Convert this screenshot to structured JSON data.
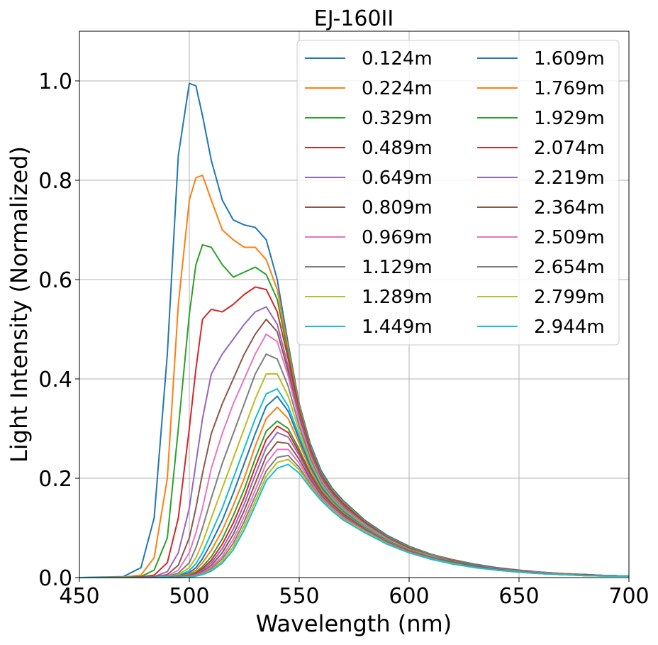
{
  "chart_data": {
    "type": "line",
    "title": "EJ-160II",
    "xlabel": "Wavelength (nm)",
    "ylabel": "Light Intensity (Normalized)",
    "xlim": [
      450,
      700
    ],
    "ylim": [
      0,
      1.1
    ],
    "xticks": [
      450,
      500,
      550,
      600,
      650,
      700
    ],
    "xtick_labels": [
      "450",
      "500",
      "550",
      "600",
      "650",
      "700"
    ],
    "yticks": [
      0.0,
      0.2,
      0.4,
      0.6,
      0.8,
      1.0
    ],
    "ytick_labels": [
      "0.0",
      "0.2",
      "0.4",
      "0.6",
      "0.8",
      "1.0"
    ],
    "grid": true,
    "legend_position": "top-right",
    "legend_columns": 2,
    "x": [
      450,
      470,
      478,
      484,
      490,
      495,
      500,
      503,
      506,
      510,
      515,
      520,
      525,
      530,
      535,
      540,
      545,
      550,
      555,
      560,
      565,
      570,
      580,
      590,
      600,
      610,
      620,
      630,
      640,
      650,
      660,
      670,
      680,
      690,
      700
    ],
    "series": [
      {
        "name": "0.124m",
        "color": "#1f77b4",
        "values": [
          0,
          0.002,
          0.02,
          0.12,
          0.45,
          0.85,
          0.995,
          0.99,
          0.93,
          0.84,
          0.76,
          0.72,
          0.71,
          0.705,
          0.68,
          0.6,
          0.47,
          0.35,
          0.27,
          0.215,
          0.18,
          0.155,
          0.115,
          0.085,
          0.063,
          0.047,
          0.036,
          0.027,
          0.02,
          0.015,
          0.011,
          0.008,
          0.006,
          0.004,
          0.003
        ]
      },
      {
        "name": "0.224m",
        "color": "#ff7f0e",
        "values": [
          0,
          0.001,
          0.005,
          0.04,
          0.2,
          0.55,
          0.76,
          0.805,
          0.81,
          0.76,
          0.7,
          0.68,
          0.665,
          0.665,
          0.64,
          0.58,
          0.46,
          0.345,
          0.265,
          0.21,
          0.177,
          0.152,
          0.113,
          0.083,
          0.061,
          0.046,
          0.035,
          0.026,
          0.019,
          0.014,
          0.01,
          0.008,
          0.006,
          0.004,
          0.003
        ]
      },
      {
        "name": "0.329m",
        "color": "#2ca02c",
        "values": [
          0,
          0,
          0.002,
          0.015,
          0.08,
          0.3,
          0.53,
          0.63,
          0.67,
          0.665,
          0.63,
          0.605,
          0.615,
          0.625,
          0.61,
          0.56,
          0.45,
          0.34,
          0.262,
          0.208,
          0.175,
          0.15,
          0.112,
          0.082,
          0.06,
          0.045,
          0.034,
          0.026,
          0.019,
          0.014,
          0.01,
          0.008,
          0.006,
          0.004,
          0.003
        ]
      },
      {
        "name": "0.489m",
        "color": "#d62728",
        "values": [
          0,
          0,
          0.001,
          0.005,
          0.03,
          0.12,
          0.3,
          0.42,
          0.52,
          0.54,
          0.535,
          0.55,
          0.57,
          0.585,
          0.58,
          0.535,
          0.44,
          0.335,
          0.258,
          0.205,
          0.172,
          0.148,
          0.11,
          0.081,
          0.059,
          0.044,
          0.034,
          0.025,
          0.019,
          0.014,
          0.01,
          0.008,
          0.006,
          0.004,
          0.003
        ]
      },
      {
        "name": "0.649m",
        "color": "#9467bd",
        "values": [
          0,
          0,
          0,
          0.002,
          0.012,
          0.05,
          0.14,
          0.23,
          0.32,
          0.41,
          0.45,
          0.48,
          0.51,
          0.535,
          0.545,
          0.51,
          0.425,
          0.328,
          0.253,
          0.202,
          0.169,
          0.145,
          0.108,
          0.08,
          0.058,
          0.044,
          0.033,
          0.025,
          0.018,
          0.013,
          0.01,
          0.007,
          0.005,
          0.004,
          0.003
        ]
      },
      {
        "name": "0.809m",
        "color": "#8c564b",
        "values": [
          0,
          0,
          0,
          0.001,
          0.006,
          0.025,
          0.08,
          0.14,
          0.21,
          0.29,
          0.35,
          0.4,
          0.45,
          0.49,
          0.52,
          0.495,
          0.415,
          0.322,
          0.25,
          0.199,
          0.167,
          0.143,
          0.107,
          0.079,
          0.058,
          0.043,
          0.033,
          0.024,
          0.018,
          0.013,
          0.01,
          0.007,
          0.005,
          0.004,
          0.003
        ]
      },
      {
        "name": "0.969m",
        "color": "#e377c2",
        "values": [
          0,
          0,
          0,
          0,
          0.003,
          0.015,
          0.05,
          0.09,
          0.14,
          0.22,
          0.29,
          0.35,
          0.4,
          0.45,
          0.49,
          0.475,
          0.405,
          0.316,
          0.246,
          0.196,
          0.165,
          0.141,
          0.106,
          0.078,
          0.057,
          0.043,
          0.032,
          0.024,
          0.018,
          0.013,
          0.01,
          0.007,
          0.005,
          0.004,
          0.003
        ]
      },
      {
        "name": "1.129m",
        "color": "#7f7f7f",
        "values": [
          0,
          0,
          0,
          0,
          0.002,
          0.009,
          0.03,
          0.06,
          0.1,
          0.16,
          0.23,
          0.29,
          0.35,
          0.41,
          0.45,
          0.44,
          0.385,
          0.305,
          0.24,
          0.192,
          0.162,
          0.139,
          0.104,
          0.077,
          0.057,
          0.042,
          0.032,
          0.024,
          0.017,
          0.013,
          0.009,
          0.007,
          0.005,
          0.004,
          0.003
        ]
      },
      {
        "name": "1.289m",
        "color": "#bcbd22",
        "values": [
          0,
          0,
          0,
          0,
          0.001,
          0.006,
          0.02,
          0.04,
          0.07,
          0.12,
          0.18,
          0.24,
          0.3,
          0.36,
          0.41,
          0.41,
          0.365,
          0.295,
          0.234,
          0.188,
          0.159,
          0.137,
          0.103,
          0.076,
          0.056,
          0.042,
          0.031,
          0.023,
          0.017,
          0.013,
          0.009,
          0.007,
          0.005,
          0.004,
          0.003
        ]
      },
      {
        "name": "1.449m",
        "color": "#17becf",
        "values": [
          0,
          0,
          0,
          0,
          0.001,
          0.004,
          0.014,
          0.028,
          0.05,
          0.09,
          0.14,
          0.2,
          0.26,
          0.32,
          0.37,
          0.38,
          0.345,
          0.285,
          0.228,
          0.185,
          0.157,
          0.135,
          0.102,
          0.075,
          0.055,
          0.041,
          0.031,
          0.023,
          0.017,
          0.012,
          0.009,
          0.007,
          0.005,
          0.004,
          0.003
        ]
      },
      {
        "name": "1.609m",
        "color": "#1f77b4",
        "values": [
          0,
          0,
          0,
          0,
          0,
          0.003,
          0.01,
          0.02,
          0.038,
          0.07,
          0.115,
          0.17,
          0.23,
          0.29,
          0.345,
          0.365,
          0.335,
          0.278,
          0.224,
          0.182,
          0.154,
          0.133,
          0.1,
          0.074,
          0.055,
          0.041,
          0.031,
          0.023,
          0.017,
          0.012,
          0.009,
          0.007,
          0.005,
          0.004,
          0.003
        ]
      },
      {
        "name": "1.769m",
        "color": "#ff7f0e",
        "values": [
          0,
          0,
          0,
          0,
          0,
          0.002,
          0.007,
          0.015,
          0.03,
          0.055,
          0.095,
          0.145,
          0.2,
          0.265,
          0.32,
          0.343,
          0.32,
          0.27,
          0.218,
          0.178,
          0.152,
          0.131,
          0.099,
          0.073,
          0.054,
          0.04,
          0.03,
          0.022,
          0.016,
          0.012,
          0.009,
          0.007,
          0.005,
          0.004,
          0.003
        ]
      },
      {
        "name": "1.929m",
        "color": "#2ca02c",
        "values": [
          0,
          0,
          0,
          0,
          0,
          0.001,
          0.005,
          0.011,
          0.022,
          0.042,
          0.078,
          0.125,
          0.178,
          0.24,
          0.295,
          0.315,
          0.3,
          0.258,
          0.211,
          0.174,
          0.149,
          0.129,
          0.098,
          0.072,
          0.053,
          0.04,
          0.03,
          0.022,
          0.016,
          0.012,
          0.009,
          0.006,
          0.005,
          0.004,
          0.003
        ]
      },
      {
        "name": "2.074m",
        "color": "#d62728",
        "values": [
          0,
          0,
          0,
          0,
          0,
          0.001,
          0.004,
          0.009,
          0.018,
          0.035,
          0.067,
          0.11,
          0.162,
          0.223,
          0.278,
          0.305,
          0.292,
          0.252,
          0.207,
          0.171,
          0.147,
          0.127,
          0.097,
          0.071,
          0.053,
          0.039,
          0.029,
          0.022,
          0.016,
          0.012,
          0.009,
          0.006,
          0.005,
          0.004,
          0.003
        ]
      },
      {
        "name": "2.219m",
        "color": "#9467bd",
        "values": [
          0,
          0,
          0,
          0,
          0,
          0.001,
          0.003,
          0.007,
          0.015,
          0.03,
          0.058,
          0.098,
          0.148,
          0.207,
          0.262,
          0.292,
          0.283,
          0.246,
          0.203,
          0.168,
          0.145,
          0.125,
          0.096,
          0.071,
          0.052,
          0.039,
          0.029,
          0.021,
          0.016,
          0.012,
          0.008,
          0.006,
          0.005,
          0.004,
          0.003
        ]
      },
      {
        "name": "2.364m",
        "color": "#8c564b",
        "values": [
          0,
          0,
          0,
          0,
          0,
          0,
          0.002,
          0.006,
          0.012,
          0.025,
          0.05,
          0.087,
          0.135,
          0.19,
          0.245,
          0.273,
          0.27,
          0.238,
          0.198,
          0.165,
          0.142,
          0.123,
          0.095,
          0.07,
          0.052,
          0.038,
          0.029,
          0.021,
          0.016,
          0.011,
          0.008,
          0.006,
          0.005,
          0.004,
          0.003
        ]
      },
      {
        "name": "2.509m",
        "color": "#e377c2",
        "values": [
          0,
          0,
          0,
          0,
          0,
          0,
          0.002,
          0.005,
          0.01,
          0.021,
          0.043,
          0.077,
          0.123,
          0.176,
          0.23,
          0.258,
          0.258,
          0.23,
          0.193,
          0.162,
          0.14,
          0.121,
          0.094,
          0.069,
          0.051,
          0.038,
          0.028,
          0.021,
          0.015,
          0.011,
          0.008,
          0.006,
          0.004,
          0.003,
          0.003
        ]
      },
      {
        "name": "2.654m",
        "color": "#7f7f7f",
        "values": [
          0,
          0,
          0,
          0,
          0,
          0,
          0.001,
          0.004,
          0.008,
          0.018,
          0.038,
          0.069,
          0.113,
          0.164,
          0.215,
          0.242,
          0.246,
          0.222,
          0.188,
          0.159,
          0.137,
          0.119,
          0.093,
          0.068,
          0.05,
          0.037,
          0.028,
          0.021,
          0.015,
          0.011,
          0.008,
          0.006,
          0.004,
          0.003,
          0.003
        ]
      },
      {
        "name": "2.799m",
        "color": "#bcbd22",
        "values": [
          0,
          0,
          0,
          0,
          0,
          0,
          0.001,
          0.003,
          0.007,
          0.015,
          0.033,
          0.062,
          0.104,
          0.154,
          0.204,
          0.232,
          0.238,
          0.217,
          0.185,
          0.157,
          0.136,
          0.118,
          0.092,
          0.068,
          0.05,
          0.037,
          0.028,
          0.02,
          0.015,
          0.011,
          0.008,
          0.006,
          0.004,
          0.003,
          0.003
        ]
      },
      {
        "name": "2.944m",
        "color": "#17becf",
        "values": [
          0,
          0,
          0,
          0,
          0,
          0,
          0.001,
          0.003,
          0.006,
          0.013,
          0.029,
          0.056,
          0.096,
          0.145,
          0.195,
          0.22,
          0.228,
          0.21,
          0.181,
          0.155,
          0.134,
          0.116,
          0.09,
          0.067,
          0.05,
          0.037,
          0.027,
          0.02,
          0.015,
          0.011,
          0.008,
          0.006,
          0.004,
          0.003,
          0.003
        ]
      }
    ]
  }
}
